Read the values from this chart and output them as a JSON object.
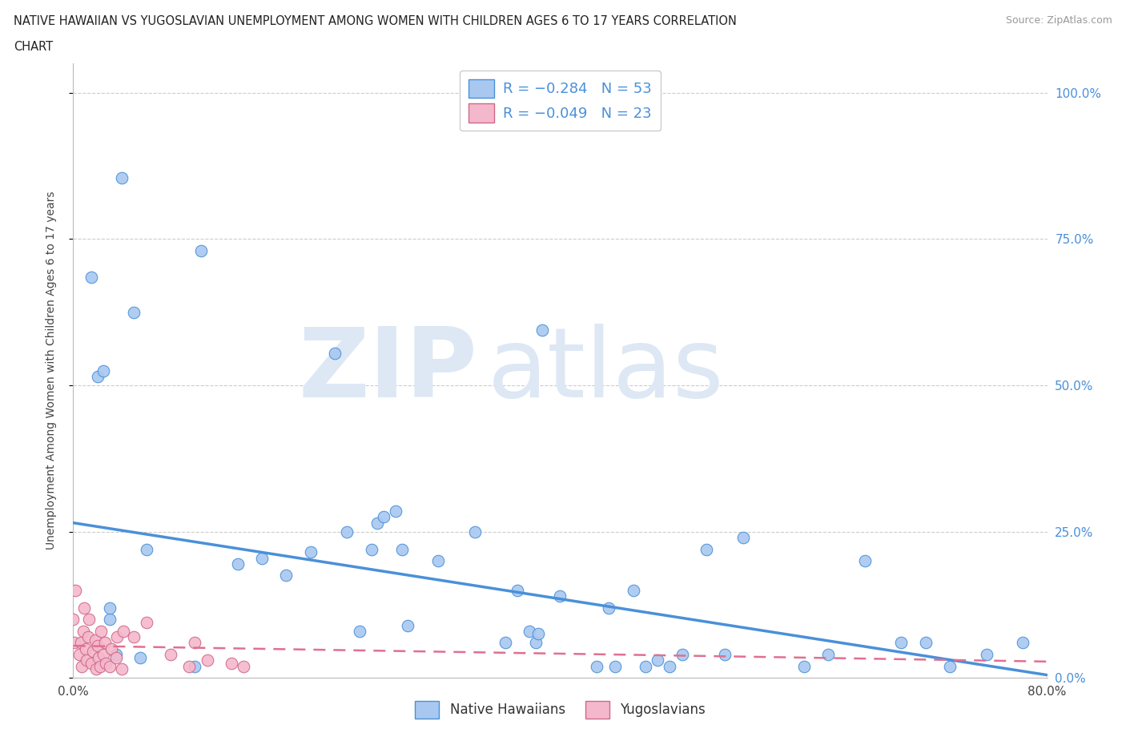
{
  "title_line1": "NATIVE HAWAIIAN VS YUGOSLAVIAN UNEMPLOYMENT AMONG WOMEN WITH CHILDREN AGES 6 TO 17 YEARS CORRELATION",
  "title_line2": "CHART",
  "source": "Source: ZipAtlas.com",
  "ylabel": "Unemployment Among Women with Children Ages 6 to 17 years",
  "xlim": [
    0.0,
    0.8
  ],
  "ylim": [
    0.0,
    1.05
  ],
  "yticks": [
    0.0,
    0.25,
    0.5,
    0.75,
    1.0
  ],
  "ytick_labels": [
    "0.0%",
    "25.0%",
    "50.0%",
    "75.0%",
    "100.0%"
  ],
  "color_hawaiian": "#a8c8f0",
  "color_yugoslav": "#f4b8cc",
  "color_hawaiian_line": "#4a90d9",
  "color_yugoslav_line": "#e07090",
  "hawaiian_x": [
    0.015,
    0.02,
    0.025,
    0.03,
    0.03,
    0.035,
    0.04,
    0.05,
    0.055,
    0.06,
    0.1,
    0.105,
    0.135,
    0.155,
    0.175,
    0.195,
    0.215,
    0.225,
    0.235,
    0.245,
    0.25,
    0.255,
    0.265,
    0.27,
    0.275,
    0.3,
    0.33,
    0.355,
    0.365,
    0.375,
    0.38,
    0.382,
    0.385,
    0.4,
    0.43,
    0.44,
    0.445,
    0.46,
    0.47,
    0.48,
    0.49,
    0.5,
    0.52,
    0.535,
    0.55,
    0.6,
    0.62,
    0.65,
    0.68,
    0.7,
    0.72,
    0.75,
    0.78
  ],
  "hawaiian_y": [
    0.685,
    0.515,
    0.525,
    0.1,
    0.12,
    0.04,
    0.855,
    0.625,
    0.035,
    0.22,
    0.02,
    0.73,
    0.195,
    0.205,
    0.175,
    0.215,
    0.555,
    0.25,
    0.08,
    0.22,
    0.265,
    0.275,
    0.285,
    0.22,
    0.09,
    0.2,
    0.25,
    0.06,
    0.15,
    0.08,
    0.06,
    0.075,
    0.595,
    0.14,
    0.02,
    0.12,
    0.02,
    0.15,
    0.02,
    0.03,
    0.02,
    0.04,
    0.22,
    0.04,
    0.24,
    0.02,
    0.04,
    0.2,
    0.06,
    0.06,
    0.02,
    0.04,
    0.06
  ],
  "yugoslav_x": [
    0.0,
    0.001,
    0.002,
    0.005,
    0.006,
    0.007,
    0.008,
    0.009,
    0.01,
    0.011,
    0.012,
    0.013,
    0.015,
    0.016,
    0.018,
    0.019,
    0.02,
    0.021,
    0.022,
    0.023,
    0.025,
    0.026,
    0.027,
    0.03,
    0.031,
    0.035,
    0.036,
    0.04,
    0.041,
    0.05,
    0.06,
    0.08,
    0.095,
    0.1,
    0.11,
    0.13,
    0.14
  ],
  "yugoslav_y": [
    0.1,
    0.06,
    0.15,
    0.04,
    0.06,
    0.02,
    0.08,
    0.12,
    0.05,
    0.03,
    0.07,
    0.1,
    0.025,
    0.045,
    0.065,
    0.015,
    0.055,
    0.035,
    0.02,
    0.08,
    0.04,
    0.06,
    0.025,
    0.02,
    0.05,
    0.035,
    0.07,
    0.015,
    0.08,
    0.07,
    0.095,
    0.04,
    0.02,
    0.06,
    0.03,
    0.025,
    0.02
  ],
  "hawaiian_trend_x": [
    0.0,
    0.8
  ],
  "hawaiian_trend_y": [
    0.265,
    0.005
  ],
  "yugoslav_trend_x": [
    0.0,
    0.8
  ],
  "yugoslav_trend_y": [
    0.055,
    0.028
  ]
}
